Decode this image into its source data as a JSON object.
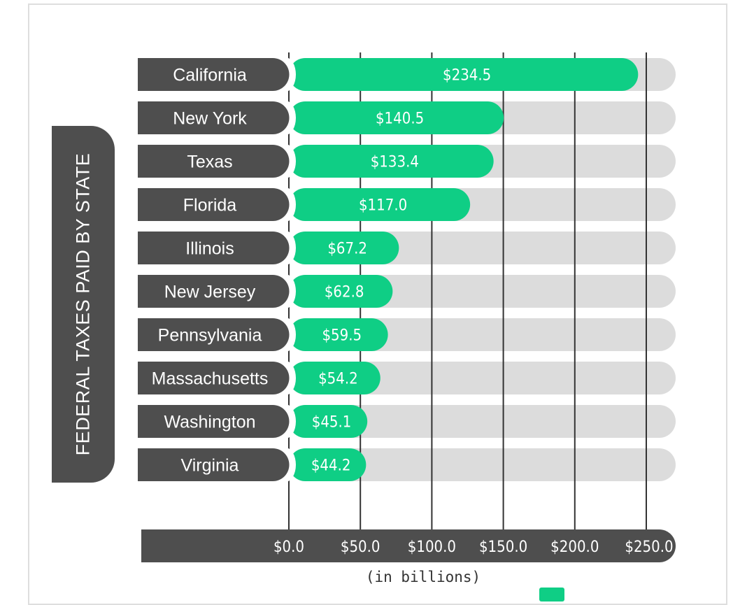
{
  "title": "FEDERAL TAXES PAID BY STATE",
  "axis_unit": "(in billions)",
  "colors": {
    "bar": "#0fce85",
    "track": "#dcdcdc",
    "label_bg": "#4e4e4e",
    "grid": "#333333"
  },
  "chart_data": {
    "type": "bar",
    "orientation": "horizontal",
    "title": "FEDERAL TAXES PAID BY STATE",
    "xlabel": "(in billions)",
    "ylabel": "",
    "categories": [
      "California",
      "New York",
      "Texas",
      "Florida",
      "Illinois",
      "New Jersey",
      "Pennsylvania",
      "Massachusetts",
      "Washington",
      "Virginia"
    ],
    "values": [
      234.5,
      140.5,
      133.4,
      117.0,
      67.2,
      62.8,
      59.5,
      54.2,
      45.1,
      44.2
    ],
    "value_labels": [
      "$234.5",
      "$140.5",
      "$133.4",
      "$117.0",
      "$67.2",
      "$62.8",
      "$59.5",
      "$54.2",
      "$45.1",
      "$44.2"
    ],
    "xlim": [
      0,
      250
    ],
    "ticks": [
      0,
      50,
      100,
      150,
      200,
      250
    ],
    "tick_labels": [
      "$0.0",
      "$50.0",
      "$100.0",
      "$150.0",
      "$200.0",
      "$250.0"
    ],
    "grid": true
  }
}
